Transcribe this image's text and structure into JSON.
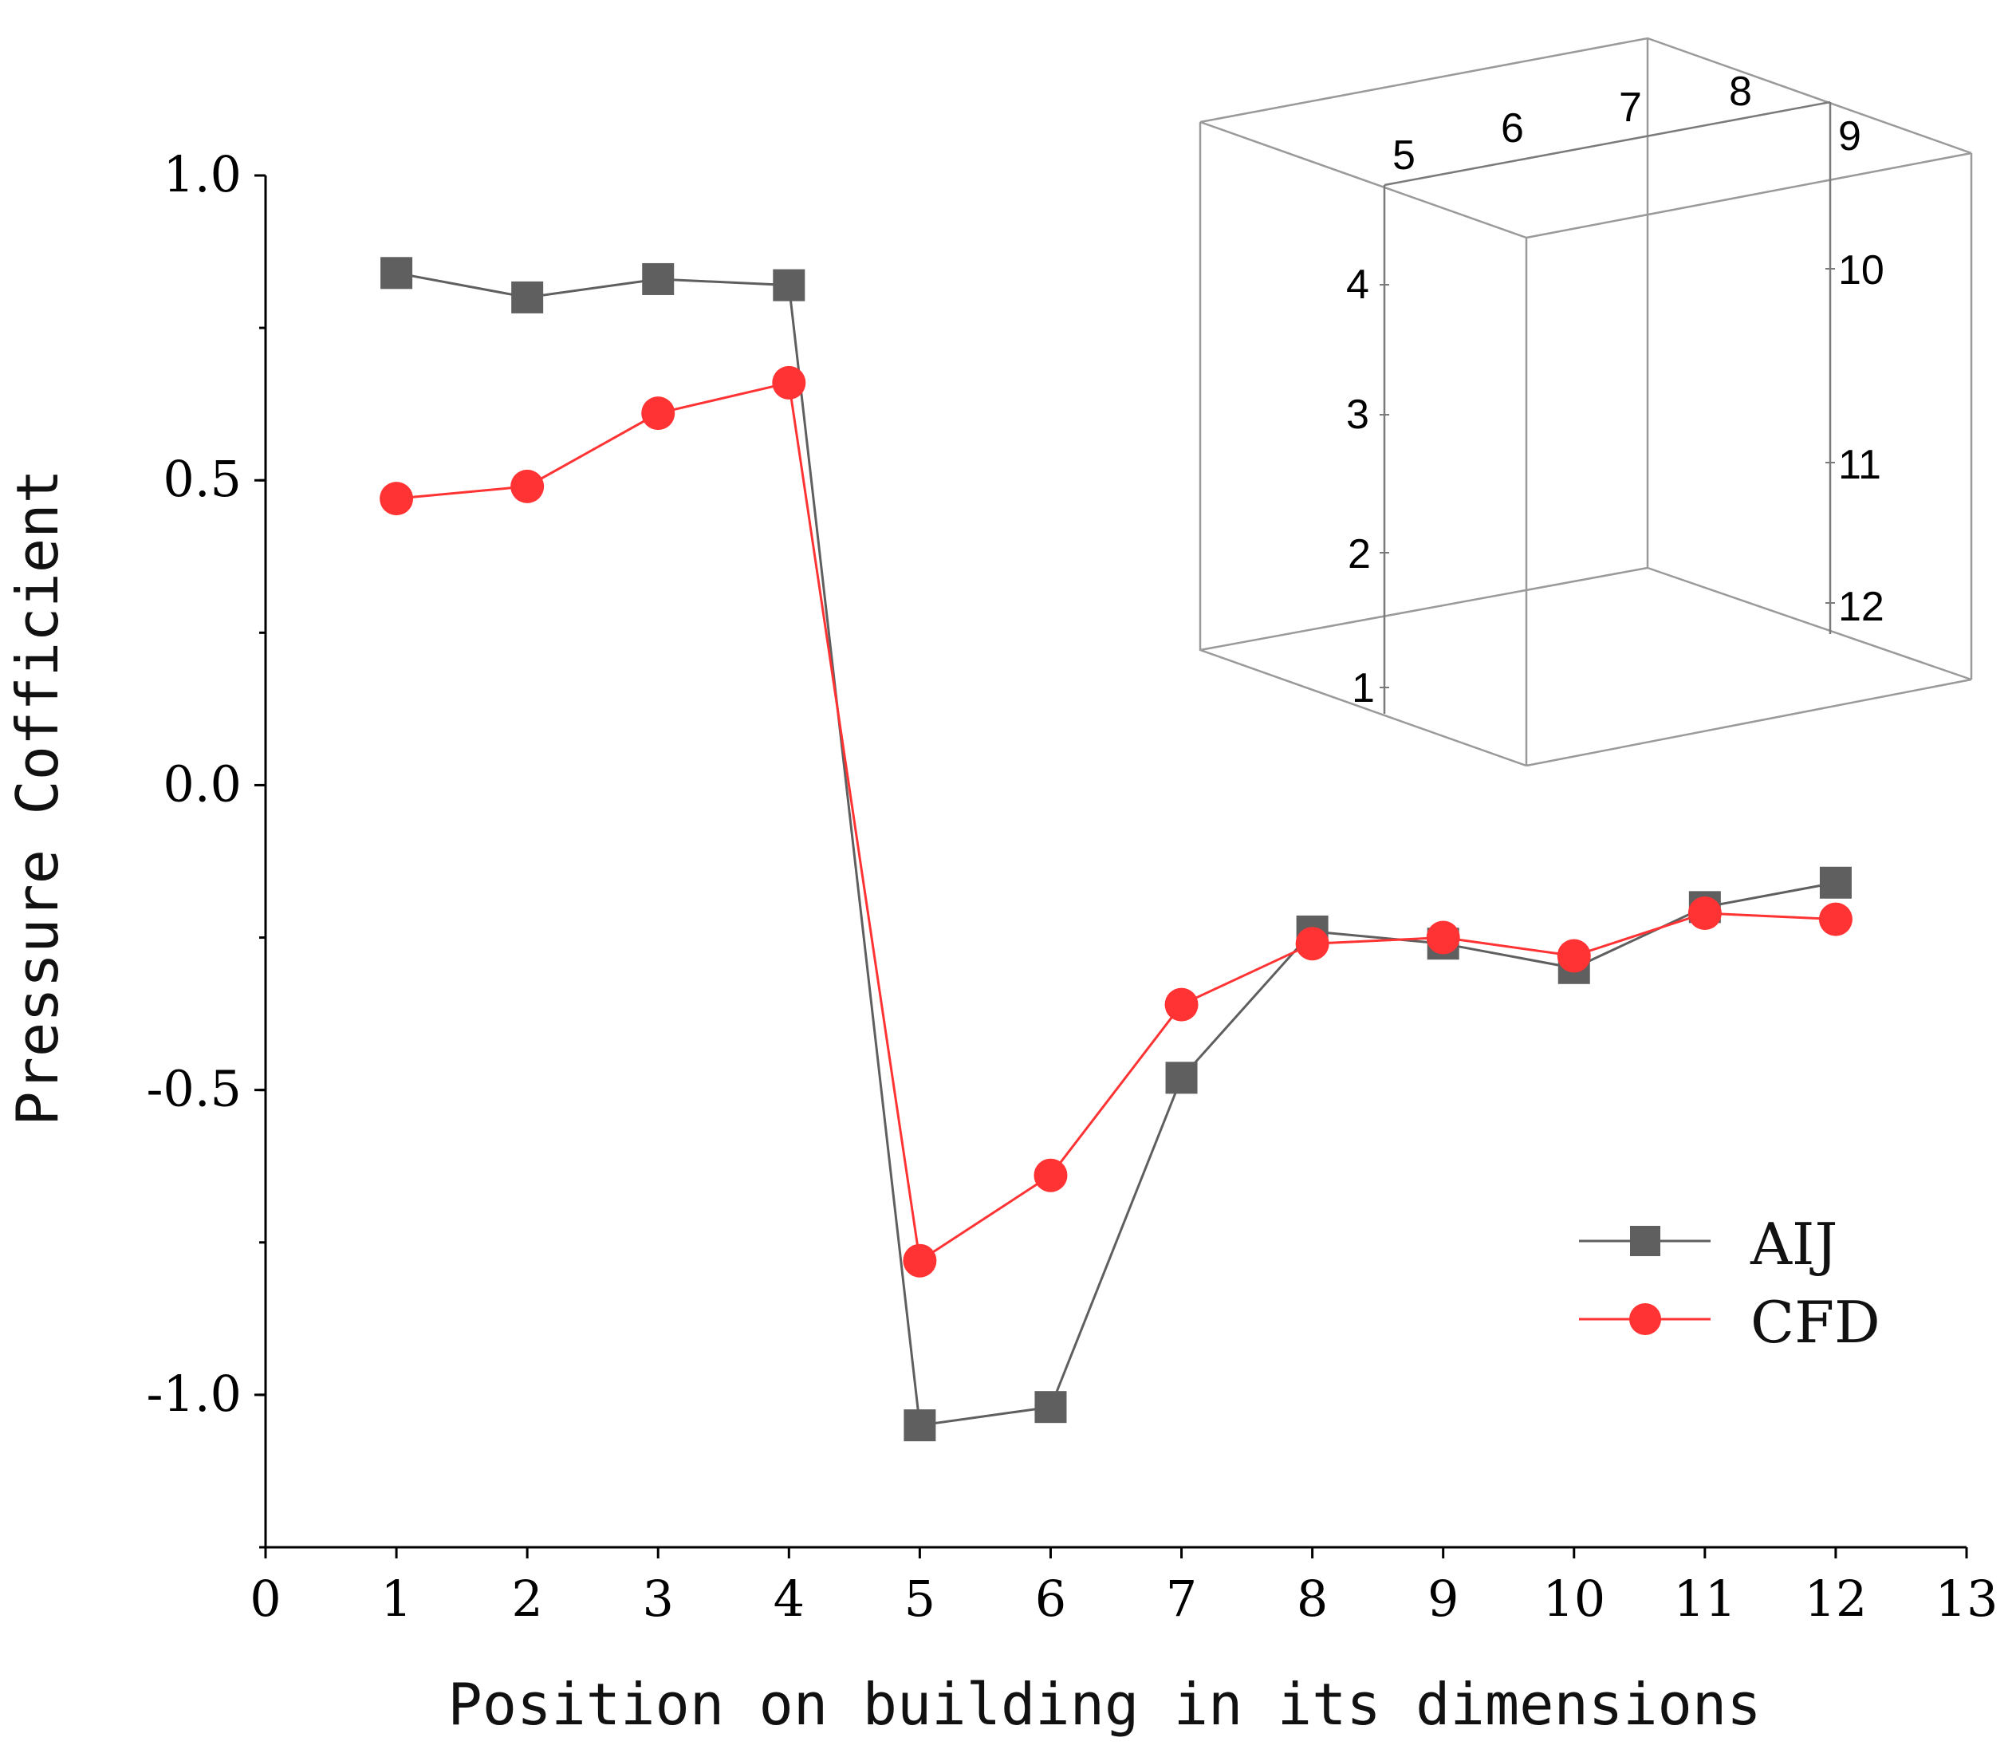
{
  "chart_data": {
    "type": "line",
    "xlabel": "Position on building in its dimensions",
    "ylabel": "Pressure Cofficient",
    "xlim": [
      0,
      13
    ],
    "ylim": [
      -1.25,
      1.0
    ],
    "xticks": [
      0,
      1,
      2,
      3,
      4,
      5,
      6,
      7,
      8,
      9,
      10,
      11,
      12,
      13
    ],
    "yticks": [
      1.0,
      0.5,
      0.0,
      -0.5,
      -1.0
    ],
    "ytick_labels": [
      "1.0",
      "0.5",
      "0.0",
      "-0.5",
      "-1.0"
    ],
    "legend_position": "lower-right",
    "series": [
      {
        "name": "AIJ",
        "color": "#5f5f5f",
        "marker": "square",
        "x": [
          1,
          2,
          3,
          4,
          5,
          6,
          7,
          8,
          9,
          10,
          11,
          12
        ],
        "values": [
          0.84,
          0.8,
          0.83,
          0.82,
          -1.05,
          -1.02,
          -0.48,
          -0.24,
          -0.26,
          -0.3,
          -0.2,
          -0.16
        ]
      },
      {
        "name": "CFD",
        "color": "#ff3333",
        "marker": "circle",
        "x": [
          1,
          2,
          3,
          4,
          5,
          6,
          7,
          8,
          9,
          10,
          11,
          12
        ],
        "values": [
          0.47,
          0.49,
          0.61,
          0.66,
          -0.78,
          -0.64,
          -0.36,
          -0.26,
          -0.25,
          -0.28,
          -0.21,
          -0.22
        ]
      }
    ],
    "inset": {
      "description_labels": [
        "1",
        "2",
        "3",
        "4",
        "5",
        "6",
        "7",
        "8",
        "9",
        "10",
        "11",
        "12"
      ]
    }
  }
}
